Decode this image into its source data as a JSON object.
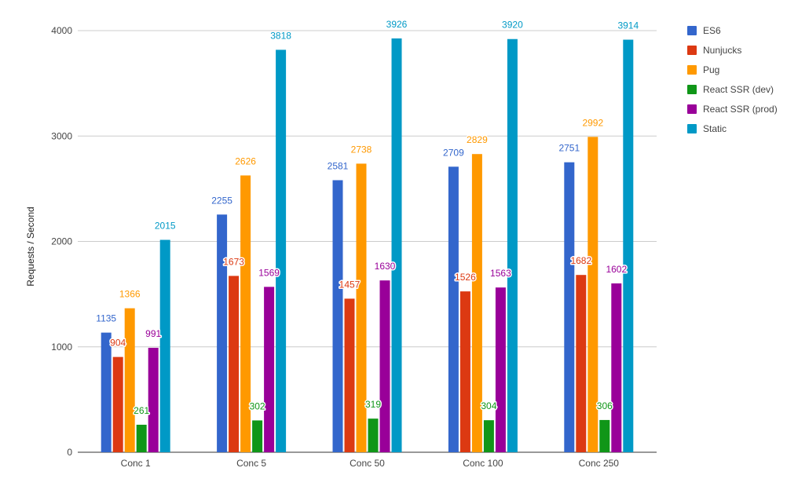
{
  "chart_data": {
    "type": "bar",
    "title": "",
    "xlabel": "",
    "ylabel": "Requests / Second",
    "ylim": [
      0,
      4000
    ],
    "yticks": [
      0,
      1000,
      2000,
      3000,
      4000
    ],
    "grid": true,
    "legend_position": "right",
    "categories": [
      "Conc 1",
      "Conc 5",
      "Conc 50",
      "Conc 100",
      "Conc 250"
    ],
    "series": [
      {
        "name": "ES6",
        "color": "#3366cc",
        "values": [
          1135,
          2255,
          2581,
          2709,
          2751
        ]
      },
      {
        "name": "Nunjucks",
        "color": "#dc3912",
        "values": [
          904,
          1673,
          1457,
          1526,
          1682
        ]
      },
      {
        "name": "Pug",
        "color": "#ff9900",
        "values": [
          1366,
          2626,
          2738,
          2829,
          2992
        ]
      },
      {
        "name": "React SSR (dev)",
        "color": "#109618",
        "values": [
          261,
          302,
          319,
          304,
          306
        ]
      },
      {
        "name": "React SSR (prod)",
        "color": "#990099",
        "values": [
          991,
          1569,
          1630,
          1563,
          1602
        ]
      },
      {
        "name": "Static",
        "color": "#0099c6",
        "values": [
          2015,
          3818,
          3926,
          3920,
          3914
        ]
      }
    ]
  }
}
